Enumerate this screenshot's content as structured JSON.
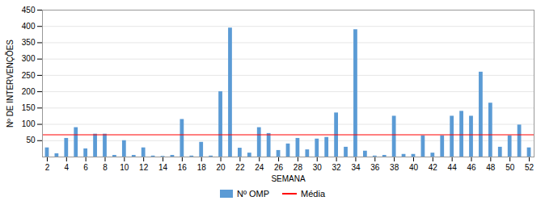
{
  "chart_data": {
    "type": "bar",
    "x": [
      2,
      3,
      4,
      5,
      6,
      7,
      8,
      9,
      10,
      11,
      12,
      13,
      14,
      15,
      16,
      17,
      18,
      19,
      20,
      21,
      22,
      23,
      24,
      25,
      26,
      27,
      28,
      29,
      30,
      31,
      32,
      33,
      34,
      35,
      36,
      37,
      38,
      39,
      40,
      41,
      42,
      43,
      44,
      45,
      46,
      47,
      48,
      49,
      50,
      51,
      52
    ],
    "series": [
      {
        "name": "Nº OMP",
        "color": "#5B9BD5",
        "values": [
          28,
          10,
          57,
          90,
          25,
          70,
          70,
          5,
          50,
          5,
          28,
          3,
          2,
          5,
          115,
          3,
          45,
          3,
          200,
          395,
          27,
          12,
          90,
          72,
          20,
          40,
          57,
          22,
          55,
          60,
          135,
          30,
          390,
          18,
          3,
          5,
          125,
          8,
          8,
          65,
          12,
          65,
          125,
          140,
          125,
          260,
          165,
          30,
          65,
          98,
          28
        ]
      }
    ],
    "mean": {
      "name": "Média",
      "color": "#FF0000",
      "value": 68
    },
    "xlabel": "SEMANA",
    "ylabel": "Nº DE INTERVENÇÕES",
    "xlim": [
      1.5,
      52.5
    ],
    "xticks": [
      2,
      4,
      6,
      8,
      10,
      12,
      14,
      16,
      18,
      20,
      22,
      24,
      26,
      28,
      30,
      32,
      34,
      36,
      38,
      40,
      42,
      44,
      46,
      48,
      50,
      52
    ],
    "ylim": [
      0,
      450
    ],
    "yticks": [
      50,
      100,
      150,
      200,
      250,
      300,
      350,
      400,
      450
    ],
    "grid": true,
    "legend": "bottom"
  }
}
